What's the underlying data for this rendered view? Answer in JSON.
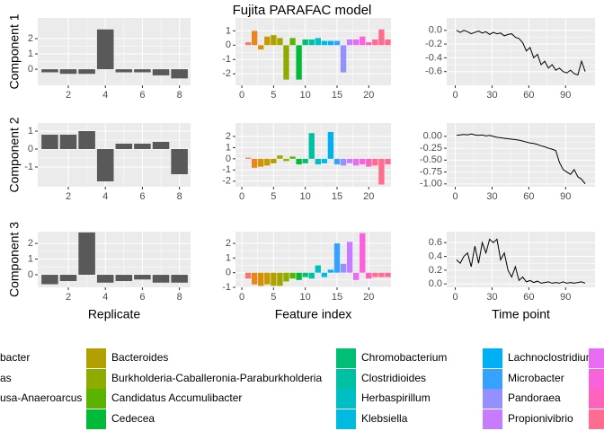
{
  "title": "Fujita PARAFAC model",
  "feature_colors": [
    "#F8766D",
    "#E7851E",
    "#D89000",
    "#C49A00",
    "#B2A000",
    "#A3A500",
    "#8EAB00",
    "#5BB300",
    "#00BA38",
    "#00BF74",
    "#00C0A3",
    "#00BFC4",
    "#00BAE0",
    "#00B0F6",
    "#35A2FF",
    "#9590FF",
    "#C77CFF",
    "#E76BF3",
    "#FA62DB",
    "#FF62BC",
    "#FF6C91",
    "#FF6C91",
    "#FF6C91"
  ],
  "chart_data": [
    {
      "type": "bar",
      "ylabel": "Component 1",
      "color": "#595959",
      "grid": true,
      "x": [
        1,
        2,
        3,
        4,
        5,
        6,
        7,
        8
      ],
      "values": [
        -0.2,
        -0.3,
        -0.3,
        2.6,
        -0.2,
        -0.2,
        -0.4,
        -0.6
      ],
      "xlim": [
        0.35,
        8.6
      ],
      "xticks": [
        2,
        4,
        6,
        8
      ],
      "ylim": [
        -1.05,
        3.35
      ],
      "yticks": [
        0,
        1,
        2
      ]
    },
    {
      "type": "bar",
      "grid": true,
      "colors_from": "feature_colors",
      "x": [
        1,
        2,
        3,
        4,
        5,
        6,
        7,
        8,
        9,
        10,
        11,
        12,
        13,
        14,
        15,
        16,
        17,
        18,
        19,
        20,
        21,
        22,
        23
      ],
      "values": [
        0.2,
        1.0,
        -0.3,
        0.6,
        0.7,
        0.5,
        -2.4,
        0.5,
        -2.4,
        0.4,
        0.4,
        0.5,
        0.3,
        0.3,
        0.3,
        -1.9,
        0.4,
        0.4,
        0.6,
        0.2,
        0.4,
        1.1,
        0.4
      ],
      "xlim": [
        -1,
        23.5
      ],
      "xticks": [
        0,
        5,
        10,
        15,
        20
      ],
      "ylim": [
        -2.8,
        1.9
      ],
      "yticks": [
        1,
        0,
        -1,
        -2
      ]
    },
    {
      "type": "line",
      "color": "#000000",
      "grid": true,
      "x": [
        1,
        4,
        7,
        10,
        13,
        16,
        19,
        22,
        25,
        28,
        31,
        34,
        37,
        40,
        43,
        46,
        49,
        52,
        55,
        58,
        61,
        64,
        67,
        70,
        73,
        76,
        79,
        82,
        85,
        88,
        91,
        94,
        97,
        100,
        103,
        106
      ],
      "values": [
        0,
        -0.03,
        0,
        -0.02,
        -0.05,
        -0.03,
        -0.01,
        -0.04,
        -0.02,
        -0.06,
        -0.03,
        -0.05,
        -0.04,
        -0.08,
        -0.06,
        -0.05,
        -0.1,
        -0.12,
        -0.18,
        -0.3,
        -0.25,
        -0.4,
        -0.35,
        -0.5,
        -0.45,
        -0.55,
        -0.5,
        -0.58,
        -0.55,
        -0.6,
        -0.62,
        -0.58,
        -0.63,
        -0.65,
        -0.45,
        -0.6
      ],
      "xlim": [
        -7,
        114
      ],
      "xticks": [
        0,
        30,
        60,
        90
      ],
      "ylim": [
        -0.8,
        0.18
      ],
      "yticks": [
        {
          "value": 0,
          "label": "0.0"
        },
        -0.2,
        -0.4,
        -0.6
      ]
    },
    {
      "type": "bar",
      "ylabel": "Component 2",
      "color": "#595959",
      "grid": true,
      "x": [
        1,
        2,
        3,
        4,
        5,
        6,
        7,
        8
      ],
      "values": [
        0.8,
        0.8,
        1.0,
        -1.8,
        0.3,
        0.3,
        0.4,
        -1.4
      ],
      "xlim": [
        0.35,
        8.6
      ],
      "xticks": [
        2,
        4,
        6,
        8
      ],
      "ylim": [
        -2.1,
        1.45
      ],
      "yticks": [
        1,
        0,
        -1
      ]
    },
    {
      "type": "bar",
      "grid": true,
      "colors_from": "feature_colors",
      "x": [
        1,
        2,
        3,
        4,
        5,
        6,
        7,
        8,
        9,
        10,
        11,
        12,
        13,
        14,
        15,
        16,
        17,
        18,
        19,
        20,
        21,
        22,
        23
      ],
      "values": [
        0.1,
        -0.8,
        -0.7,
        -0.6,
        -0.4,
        0.3,
        -0.2,
        0.2,
        -0.5,
        -0.4,
        2.3,
        -0.5,
        -0.4,
        2.4,
        -0.5,
        -0.6,
        -0.4,
        -0.6,
        -0.5,
        -0.7,
        -0.6,
        -2.3,
        -0.5
      ],
      "xlim": [
        -1,
        23.5
      ],
      "xticks": [
        0,
        5,
        10,
        15,
        20
      ],
      "ylim": [
        -2.5,
        3.2
      ],
      "yticks": [
        2,
        1,
        0,
        -1,
        -2
      ]
    },
    {
      "type": "line",
      "color": "#000000",
      "grid": true,
      "x": [
        1,
        4,
        7,
        10,
        13,
        16,
        19,
        22,
        25,
        28,
        31,
        34,
        37,
        40,
        43,
        46,
        49,
        52,
        55,
        58,
        61,
        64,
        67,
        70,
        73,
        76,
        79,
        82,
        85,
        88,
        91,
        94,
        97,
        100,
        103,
        106
      ],
      "values": [
        0.02,
        0.03,
        0.04,
        0.03,
        0.05,
        0.03,
        0.02,
        0.03,
        0.01,
        0.02,
        0,
        -0.02,
        -0.03,
        -0.04,
        -0.05,
        -0.06,
        -0.07,
        -0.08,
        -0.1,
        -0.12,
        -0.14,
        -0.15,
        -0.17,
        -0.2,
        -0.22,
        -0.25,
        -0.27,
        -0.3,
        -0.55,
        -0.7,
        -0.75,
        -0.8,
        -0.7,
        -0.85,
        -0.9,
        -1.0
      ],
      "xlim": [
        -7,
        114
      ],
      "xticks": [
        0,
        30,
        60,
        90
      ],
      "ylim": [
        -1.06,
        0.28
      ],
      "yticks": [
        {
          "value": 0,
          "label": "0.00"
        },
        {
          "value": -0.25,
          "label": "-0.25"
        },
        {
          "value": -0.5,
          "label": "-0.50"
        },
        {
          "value": -0.75,
          "label": "-0.75"
        },
        {
          "value": -1,
          "label": "-1.00"
        }
      ]
    },
    {
      "type": "bar",
      "ylabel": "Component 3",
      "xlabel": "Replicate",
      "color": "#595959",
      "grid": true,
      "x": [
        1,
        2,
        3,
        4,
        5,
        6,
        7,
        8
      ],
      "values": [
        -0.6,
        -0.4,
        2.7,
        -0.5,
        -0.4,
        -0.3,
        -0.5,
        -0.5
      ],
      "xlim": [
        0.35,
        8.6
      ],
      "xticks": [
        2,
        4,
        6,
        8
      ],
      "ylim": [
        -0.8,
        2.75
      ],
      "yticks": [
        0,
        1,
        2
      ]
    },
    {
      "type": "bar",
      "xlabel": "Feature index",
      "grid": true,
      "colors_from": "feature_colors",
      "x": [
        1,
        2,
        3,
        4,
        5,
        6,
        7,
        8,
        9,
        10,
        11,
        12,
        13,
        14,
        15,
        16,
        17,
        18,
        19,
        20,
        21,
        22,
        23
      ],
      "values": [
        -0.4,
        -0.8,
        -0.9,
        -0.8,
        -0.9,
        -0.9,
        -0.6,
        -0.4,
        -0.5,
        -0.3,
        -0.4,
        0.5,
        -0.3,
        0.2,
        2.0,
        0.6,
        2.1,
        -0.5,
        2.7,
        -0.4,
        -0.3,
        -0.3,
        -0.3
      ],
      "xlim": [
        -1,
        23.5
      ],
      "xticks": [
        0,
        5,
        10,
        15,
        20
      ],
      "ylim": [
        -1,
        2.8
      ],
      "yticks": [
        2,
        1,
        0,
        -1
      ]
    },
    {
      "type": "line",
      "xlabel": "Time point",
      "color": "#000000",
      "grid": true,
      "x": [
        1,
        4,
        7,
        10,
        13,
        16,
        19,
        22,
        25,
        28,
        31,
        34,
        37,
        40,
        43,
        46,
        49,
        52,
        55,
        58,
        61,
        64,
        67,
        70,
        73,
        76,
        79,
        82,
        85,
        88,
        91,
        94,
        97,
        100,
        103,
        106
      ],
      "values": [
        0.35,
        0.3,
        0.4,
        0.45,
        0.25,
        0.55,
        0.3,
        0.6,
        0.45,
        0.65,
        0.6,
        0.65,
        0.35,
        0.45,
        0.2,
        0.1,
        0.25,
        0.05,
        0.1,
        0.03,
        0.05,
        0.02,
        0.04,
        0.01,
        0.02,
        0.03,
        0.01,
        0.02,
        0.01,
        0.03,
        0.01,
        0.02,
        0.01,
        0.02,
        0.03,
        0.01
      ],
      "xlim": [
        -7,
        114
      ],
      "xticks": [
        0,
        30,
        60,
        90
      ],
      "ylim": [
        -0.05,
        0.76
      ],
      "yticks": [
        {
          "value": 0,
          "label": "0.0"
        },
        0.2,
        0.4,
        0.6
      ]
    }
  ],
  "legend": {
    "columns": [
      [
        {
          "name": "bacter"
        },
        {
          "name": "as"
        },
        {
          "name": "usa-Anaeroarcus"
        }
      ],
      [
        {
          "name": "Bacteroides",
          "color": "#B2A000"
        },
        {
          "name": "Burkholderia-Caballeronia-Paraburkholderia",
          "color": "#8EAB00"
        },
        {
          "name": "Candidatus Accumulibacter",
          "color": "#5BB300"
        },
        {
          "name": "Cedecea",
          "color": "#00BA38"
        }
      ],
      [
        {
          "name": "Chromobacterium",
          "color": "#00BF74"
        },
        {
          "name": "Clostridioides",
          "color": "#00C0A3"
        },
        {
          "name": "Herbaspirillum",
          "color": "#00BFC4"
        },
        {
          "name": "Klebsiella",
          "color": "#00BAE0"
        }
      ],
      [
        {
          "name": "Lachnoclostridium",
          "color": "#00B0F6"
        },
        {
          "name": "Microbacter",
          "color": "#35A2FF"
        },
        {
          "name": "Pandoraea",
          "color": "#9590FF"
        },
        {
          "name": "Propionivibrio",
          "color": "#C77CFF"
        }
      ],
      [
        {
          "color": "#E76BF3"
        },
        {
          "color": "#FA62DB"
        },
        {
          "color": "#FF62BC"
        },
        {
          "color": "#FF6C91"
        }
      ]
    ]
  }
}
